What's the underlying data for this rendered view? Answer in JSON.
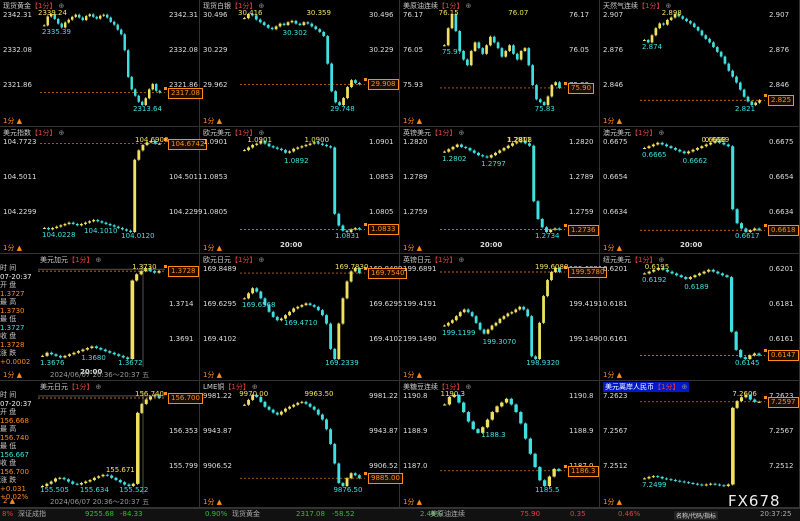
{
  "panels": [
    {
      "name": "spot-gold",
      "title": "现货黄金",
      "period": "1分",
      "yl": [
        "2342.31",
        "2332.08",
        "2321.86"
      ],
      "yr": [
        "2342.31",
        "2332.08",
        "2321.86"
      ],
      "hi": "2339.24",
      "lo1": "2335.39",
      "lo2": "2313.64",
      "cur": "2317.08",
      "bottom": "1分",
      "series": [
        2336,
        2338.5,
        2339.2,
        2337.8,
        2336.5,
        2335.4,
        2336.8,
        2337.6,
        2338.4,
        2339.0,
        2338.2,
        2337.5,
        2338.6,
        2339.1,
        2338.4,
        2337.9,
        2338.7,
        2339.0,
        2338.2,
        2337.0,
        2336.2,
        2334.8,
        2333.5,
        2329.0,
        2321.5,
        2318.0,
        2316.2,
        2314.5,
        2313.6,
        2315.5,
        2318.0,
        2319.5,
        2317.6,
        2317.1
      ]
    },
    {
      "name": "spot-silver",
      "title": "现货白银",
      "period": "1分",
      "yl": [
        "30.496",
        "30.229",
        "29.962"
      ],
      "yr": [
        "30.496",
        "30.229",
        "29.962"
      ],
      "hi": "30.416",
      "mid": "30.302",
      "hi2": "30.359",
      "lo2": "29.748",
      "cur": "29.908",
      "bottom": "1分",
      "series": [
        30.38,
        30.41,
        30.4,
        30.37,
        30.35,
        30.33,
        30.31,
        30.3,
        30.32,
        30.34,
        30.33,
        30.35,
        30.36,
        30.34,
        30.33,
        30.35,
        30.34,
        30.32,
        30.3,
        30.28,
        30.25,
        30.05,
        29.85,
        29.77,
        29.75,
        29.8,
        29.88,
        29.93,
        29.91,
        29.9
      ]
    },
    {
      "name": "nymex-crude",
      "title": "美原油连续",
      "period": "1分",
      "yl": [
        "76.17",
        "76.05",
        "75.93"
      ],
      "yr": [
        "76.17",
        "76.05",
        "75.93"
      ],
      "hi": "76.15",
      "hi2": "76.07",
      "lo1": "75.97",
      "lo2": "75.83",
      "cur": "75.90",
      "bottom": "1分",
      "series": [
        76.04,
        76.1,
        76.15,
        76.09,
        76.02,
        75.99,
        75.97,
        76.02,
        76.05,
        76.03,
        76.01,
        76.04,
        76.07,
        76.05,
        76.03,
        76.0,
        76.02,
        76.04,
        76.01,
        75.99,
        76.02,
        76.03,
        75.97,
        75.9,
        75.85,
        75.84,
        75.83,
        75.86,
        75.9,
        75.91,
        75.89
      ]
    },
    {
      "name": "nat-gas",
      "title": "天然气连续",
      "period": "1分",
      "yl": [
        "2.907",
        "2.876",
        "2.846"
      ],
      "yr": [
        "2.907",
        "2.876",
        "2.846"
      ],
      "hi": "2.898",
      "lo1": "2.874",
      "lo2": "2.821",
      "cur": "2.825",
      "bottom": "1分",
      "series": [
        2.876,
        2.874,
        2.88,
        2.886,
        2.89,
        2.889,
        2.893,
        2.895,
        2.898,
        2.896,
        2.894,
        2.892,
        2.89,
        2.887,
        2.884,
        2.88,
        2.877,
        2.874,
        2.87,
        2.866,
        2.862,
        2.856,
        2.85,
        2.845,
        2.84,
        2.834,
        2.828,
        2.824,
        2.821,
        2.823,
        2.825
      ]
    },
    {
      "name": "dollar-index",
      "title": "美元指数",
      "period": "1分",
      "yl": [
        "104.7723",
        "104.5011",
        "104.2299"
      ],
      "yr": [
        "104.7723",
        "104.5011",
        "104.2299"
      ],
      "hi": "104.6908",
      "lo1": "104.0228",
      "mid": "104.1010",
      "lo2": "104.0120",
      "cur": "104.6742",
      "bottom": "1分",
      "series": [
        104.04,
        104.03,
        104.04,
        104.05,
        104.06,
        104.07,
        104.08,
        104.07,
        104.06,
        104.07,
        104.08,
        104.09,
        104.1,
        104.09,
        104.08,
        104.07,
        104.06,
        104.05,
        104.04,
        104.03,
        104.02,
        104.01,
        104.55,
        104.62,
        104.66,
        104.68,
        104.69,
        104.67,
        104.67
      ]
    },
    {
      "name": "eur-usd",
      "title": "欧元美元",
      "period": "1分",
      "yl": [
        "1.0901",
        "1.0853",
        "1.0805"
      ],
      "yr": [
        "1.0901",
        "1.0853",
        "1.0805"
      ],
      "hi": "1.0901",
      "hi2": "1.0900",
      "mid": "1.0892",
      "lo2": "1.0831",
      "cur": "1.0833",
      "bottom": "1分",
      "time": "20:00",
      "series": [
        1.0894,
        1.0896,
        1.0898,
        1.0899,
        1.0901,
        1.0899,
        1.0897,
        1.0896,
        1.0895,
        1.0894,
        1.0892,
        1.0893,
        1.0895,
        1.0896,
        1.0897,
        1.0898,
        1.0899,
        1.09,
        1.0899,
        1.0898,
        1.0897,
        1.0896,
        1.0845,
        1.0836,
        1.0832,
        1.0831,
        1.0833,
        1.0834,
        1.0833
      ]
    },
    {
      "name": "gbp-usd",
      "title": "英镑美元",
      "period": "1分",
      "yl": [
        "1.2820",
        "1.2789",
        "1.2759"
      ],
      "yr": [
        "1.2820",
        "1.2789",
        "1.2759"
      ],
      "hi": "1.2808",
      "lo1": "1.2802",
      "mid": "1.2797",
      "hi2": "1.2811",
      "lo2": "1.2734",
      "cur": "1.2736",
      "bottom": "1分",
      "time": "20:00",
      "series": [
        1.2802,
        1.2804,
        1.2806,
        1.2808,
        1.2806,
        1.2805,
        1.2803,
        1.2801,
        1.2799,
        1.2798,
        1.2797,
        1.2799,
        1.2801,
        1.2803,
        1.2805,
        1.2807,
        1.2809,
        1.281,
        1.2811,
        1.2809,
        1.2807,
        1.276,
        1.2745,
        1.2738,
        1.2734,
        1.2736,
        1.2737,
        1.2736
      ]
    },
    {
      "name": "aud-usd",
      "title": "澳元美元",
      "period": "1分",
      "yl": [
        "0.6675",
        "0.6654",
        "0.6634"
      ],
      "yr": [
        "0.6675",
        "0.6654",
        "0.6634"
      ],
      "hi": "0.6668",
      "lo1": "0.6665",
      "mid": "0.6662",
      "hi2": "0.6669",
      "lo2": "0.6617",
      "cur": "0.6618",
      "bottom": "1分",
      "time": "20:00",
      "series": [
        0.6665,
        0.6666,
        0.6667,
        0.6668,
        0.6667,
        0.6666,
        0.6665,
        0.6664,
        0.6663,
        0.6662,
        0.6663,
        0.6664,
        0.6665,
        0.6666,
        0.6667,
        0.6668,
        0.6669,
        0.6668,
        0.6667,
        0.6666,
        0.663,
        0.6622,
        0.6619,
        0.6617,
        0.6618,
        0.6619,
        0.6618
      ]
    },
    {
      "name": "usd-cad",
      "title": "美元加元",
      "period": "1分",
      "yl": [
        "1.3737",
        "1.3714",
        "1.3691"
      ],
      "yr": [
        "1.3737",
        "1.3714",
        "1.3691"
      ],
      "hi": "1.3730",
      "lo1": "1.3676",
      "mid": "1.3680",
      "lo2": "1.3672",
      "cur": "1.3728",
      "bottom": "1分",
      "time": "20:00",
      "side": {
        "time": "时 间",
        "date": "07-20:37",
        "open": "开 盘",
        "openv": "1.3727",
        "high": "最 高",
        "highv": "1.3730",
        "low": "最 低",
        "lowv": "1.3727",
        "close": "收 盘",
        "closev": "1.3728",
        "chg": "涨 跌",
        "chgv": "+0.0002"
      },
      "tip": "2024/06/07 20:36～20:37 五",
      "series": [
        1.3674,
        1.3676,
        1.3675,
        1.3674,
        1.3673,
        1.3674,
        1.3675,
        1.3676,
        1.3677,
        1.3678,
        1.3679,
        1.368,
        1.3679,
        1.3678,
        1.3677,
        1.3676,
        1.3675,
        1.3674,
        1.3673,
        1.3672,
        1.3722,
        1.3726,
        1.3728,
        1.373,
        1.3728,
        1.3727,
        1.3728
      ]
    },
    {
      "name": "eur-jpy",
      "title": "欧元日元",
      "period": "1分",
      "yl": [
        "169.8489",
        "169.6295",
        "169.4102"
      ],
      "yr": [
        "169.8489",
        "169.6295",
        "169.4102"
      ],
      "hi": "169.7830",
      "lo1": "169.6568",
      "mid": "169.4710",
      "lo2": "169.2339",
      "cur": "169.7540",
      "bottom": "1分",
      "series": [
        169.6,
        169.63,
        169.66,
        169.64,
        169.6,
        169.56,
        169.52,
        169.49,
        169.47,
        169.48,
        169.5,
        169.52,
        169.54,
        169.55,
        169.56,
        169.57,
        169.56,
        169.55,
        169.53,
        169.5,
        169.45,
        169.3,
        169.24,
        169.45,
        169.6,
        169.7,
        169.76,
        169.78,
        169.75
      ]
    },
    {
      "name": "gbp-jpy",
      "title": "英镑日元",
      "period": "1分",
      "yl": [
        "199.6891",
        "199.4191",
        "199.1490"
      ],
      "yr": [
        "199.6891",
        "199.4191",
        "199.1490"
      ],
      "hi": "199.6080",
      "mid": "199.3070",
      "lo1": "199.1199",
      "lo2": "198.9320",
      "cur": "199.5780",
      "bottom": "1分",
      "series": [
        199.18,
        199.2,
        199.22,
        199.25,
        199.28,
        199.3,
        199.28,
        199.25,
        199.2,
        199.15,
        199.12,
        199.15,
        199.18,
        199.2,
        199.23,
        199.25,
        199.27,
        199.28,
        199.3,
        199.32,
        199.3,
        199.25,
        198.95,
        198.93,
        199.2,
        199.4,
        199.52,
        199.58,
        199.61,
        199.58
      ]
    },
    {
      "name": "aud-jpy",
      "title": "纽元美元",
      "period": "1分",
      "yl": [
        "0.6201",
        "0.6181",
        "0.6161"
      ],
      "yr": [
        "0.6201",
        "0.6181",
        "0.6161"
      ],
      "hi": "0.6195",
      "lo1": "0.6192",
      "mid": "0.6189",
      "lo2": "0.6145",
      "cur": "0.6147",
      "bottom": "1分",
      "series": [
        0.6192,
        0.6193,
        0.6194,
        0.6195,
        0.6194,
        0.6193,
        0.6192,
        0.6191,
        0.619,
        0.6189,
        0.619,
        0.6191,
        0.6192,
        0.6193,
        0.6194,
        0.6193,
        0.6192,
        0.6191,
        0.619,
        0.616,
        0.615,
        0.6146,
        0.6145,
        0.6147,
        0.6148,
        0.6147
      ]
    },
    {
      "name": "usd-jpy",
      "title": "美元日元",
      "period": "1分",
      "yl": [
        "156.906",
        "156.353",
        "155.799"
      ],
      "yr": [
        "156.906",
        "156.353",
        "155.799"
      ],
      "hi": "156.740",
      "lo1": "155.505",
      "mid": "155.634",
      "mid2": "155.671",
      "lo2": "155.522",
      "cur": "156.700",
      "bottom": "2",
      "side": {
        "time": "时 间",
        "date": "07-20:37",
        "open": "开 盘",
        "openv": "156.668",
        "high": "最 高",
        "highv": "156.740",
        "low": "最 低",
        "lowv": "156.667",
        "close": "收 盘",
        "closev": "156.700",
        "chg": "涨 跌",
        "chgv": "+0.031",
        "pct": "+0.02%"
      },
      "tip": "2024/06/07 20:36～20:37 五",
      "series": [
        155.52,
        155.55,
        155.58,
        155.62,
        155.63,
        155.61,
        155.58,
        155.55,
        155.54,
        155.56,
        155.58,
        155.6,
        155.63,
        155.65,
        155.67,
        155.66,
        155.63,
        155.6,
        155.57,
        155.54,
        155.52,
        155.55,
        156.5,
        156.62,
        156.68,
        156.72,
        156.74,
        156.7
      ]
    },
    {
      "name": "lme-copper",
      "title": "LME铜",
      "period": "1分",
      "yl": [
        "9981.22",
        "9943.87",
        "9906.52"
      ],
      "yr": [
        "9981.22",
        "9943.87",
        "9906.52"
      ],
      "hi": "9970.00",
      "hi2": "9963.50",
      "lo2": "9876.50",
      "cur": "9885.00",
      "bottom": "1分",
      "series": [
        9960,
        9965,
        9970,
        9968,
        9963,
        9958,
        9955,
        9952,
        9950,
        9953,
        9956,
        9958,
        9960,
        9962,
        9963,
        9961,
        9958,
        9955,
        9950,
        9945,
        9935,
        9920,
        9900,
        9880,
        9877,
        9885,
        9890,
        9888,
        9885
      ]
    },
    {
      "name": "us-sugar",
      "title": "美糖豆连续",
      "period": "1分",
      "yl": [
        "1190.8",
        "1188.9",
        "1187.0"
      ],
      "yr": [
        "1190.8",
        "1188.9",
        "1187.0"
      ],
      "hi": "1190.3",
      "mid": "1188.3",
      "lo2": "1185.5",
      "cur": "1186.3",
      "bottom": "1分",
      "series": [
        1189.8,
        1190.2,
        1190.3,
        1189.9,
        1189.4,
        1188.9,
        1188.5,
        1188.3,
        1188.6,
        1189.0,
        1189.4,
        1189.7,
        1189.9,
        1190.1,
        1189.8,
        1189.4,
        1188.8,
        1188.0,
        1187.2,
        1186.5,
        1185.8,
        1185.5,
        1186.0,
        1186.4,
        1186.3
      ]
    },
    {
      "name": "usd-cnh",
      "title": "美元离岸人民币",
      "period": "1分",
      "yl": [
        "7.2623",
        "7.2567",
        "7.2512"
      ],
      "yr": [
        "7.2623",
        "7.2567",
        "7.2512"
      ],
      "hi": "7.2606",
      "lo1": "7.2499",
      "cur": "7.2597",
      "bottom": "1分",
      "highlight": true,
      "series": [
        7.2496,
        7.2498,
        7.2499,
        7.2498,
        7.2496,
        7.2495,
        7.2494,
        7.2493,
        7.2492,
        7.2491,
        7.249,
        7.2489,
        7.2488,
        7.2487,
        7.2488,
        7.2489,
        7.2488,
        7.2487,
        7.2486,
        7.2488,
        7.2589,
        7.2598,
        7.2603,
        7.2606,
        7.26,
        7.2597,
        7.2597
      ]
    }
  ],
  "status": [
    {
      "k": "s1",
      "text": "8%",
      "cls": "pos"
    },
    {
      "k": "s2",
      "text": "深证成指",
      "cls": ""
    },
    {
      "k": "s3",
      "text": "9255.68",
      "cls": "neg"
    },
    {
      "k": "s4",
      "text": "-84.33",
      "cls": "neg"
    },
    {
      "k": "s5",
      "text": "0.90%",
      "cls": "neg"
    },
    {
      "k": "s6",
      "text": "现货黄金",
      "cls": ""
    },
    {
      "k": "s7",
      "text": "2317.08",
      "cls": "neg"
    },
    {
      "k": "s8",
      "text": "-58.52",
      "cls": "neg"
    },
    {
      "k": "s9",
      "text": "2.46%",
      "cls": "neg"
    },
    {
      "k": "s10",
      "text": "美原油连续",
      "cls": ""
    },
    {
      "k": "s11",
      "text": "75.90",
      "cls": "pos"
    },
    {
      "k": "s12",
      "text": "0.35",
      "cls": "pos"
    },
    {
      "k": "s13",
      "text": "0.46%",
      "cls": "pos"
    }
  ],
  "logo": "FX678",
  "logo_sub": "名称/代码/指标",
  "clock": "20:37:25"
}
